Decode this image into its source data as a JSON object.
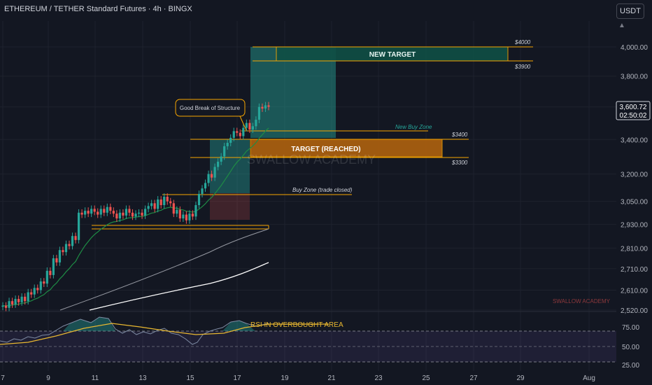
{
  "header": {
    "title": "ETHEREUM / TETHER Standard Futures · 4h · BINGX",
    "currency_button": "USDT"
  },
  "colors": {
    "background": "#131722",
    "up": "#26a69a",
    "down": "#ef5350",
    "orange": "#f7a600",
    "target_fill": "#b8660d",
    "new_target_fill": "#0f4f45",
    "ema_fast": "#1e8c45",
    "ma_mid": "#9598a1",
    "ma_slow": "#ffffff",
    "rsi": "#7e8ba3",
    "rsi_ma": "#e8b730",
    "rsi_band": "#7e57c2"
  },
  "price_label": {
    "price": "3,600.72",
    "countdown": "02:50:02"
  },
  "annotations": {
    "new_target": "NEW TARGET",
    "target_reached": "TARGET (REACHED)",
    "break_of_structure": "Good Break of Structure",
    "new_buy_zone": "New Buy Zone",
    "buy_zone_closed": "Buy Zone (trade closed)",
    "level_4000": "$4000",
    "level_3900": "$3900",
    "level_3400": "$3400",
    "level_3300": "$3300",
    "watermark": "SWALLOW ACADEMY",
    "watermark_small": "SWALLOW ACADEMY",
    "rsi_label": "RSI IN OVERBOUGHT AREA"
  },
  "chart_data": {
    "type": "candlestick",
    "symbol": "ETHEREUM / TETHER Standard Futures",
    "timeframe": "4h",
    "exchange": "BINGX",
    "y_scale": "log",
    "y_ticks": [
      "4,000.00",
      "3,800.00",
      "3,600.00",
      "3,400.00",
      "3,200.00",
      "3,050.00",
      "2,930.00",
      "2,810.00",
      "2,710.00",
      "2,610.00",
      "2,520.00"
    ],
    "x_ticks": [
      "7",
      "9",
      "11",
      "13",
      "15",
      "17",
      "19",
      "21",
      "23",
      "25",
      "27",
      "29",
      "Aug"
    ],
    "ohlc_close": [
      2540,
      2530,
      2560,
      2545,
      2570,
      2555,
      2580,
      2560,
      2600,
      2590,
      2620,
      2610,
      2650,
      2640,
      2700,
      2680,
      2760,
      2740,
      2800,
      2790,
      2830,
      2820,
      2870,
      2850,
      2990,
      2980,
      3000,
      2985,
      3010,
      2995,
      2980,
      3010,
      2990,
      3020,
      3000,
      2985,
      2960,
      2990,
      2975,
      3010,
      2990,
      2970,
      2985,
      2990,
      2975,
      3010,
      3025,
      3040,
      3010,
      3060,
      3030,
      3075,
      3050,
      3040,
      2985,
      3005,
      2960,
      2980,
      2950,
      2985,
      2970,
      3030,
      3090,
      3120,
      3150,
      3200,
      3180,
      3240,
      3270,
      3300,
      3360,
      3380,
      3410,
      3450,
      3440,
      3420,
      3470,
      3500,
      3460,
      3480,
      3520,
      3600,
      3590,
      3610,
      3600.72
    ],
    "levels": [
      {
        "label": "$4000",
        "price": 4000
      },
      {
        "label": "$3900",
        "price": 3900
      },
      {
        "label": "$3400",
        "price": 3400
      },
      {
        "label": "$3300",
        "price": 3300
      }
    ],
    "rsi": {
      "ticks": [
        "75.00",
        "50.00",
        "25.00"
      ],
      "overbought": 70,
      "oversold": 30
    }
  }
}
